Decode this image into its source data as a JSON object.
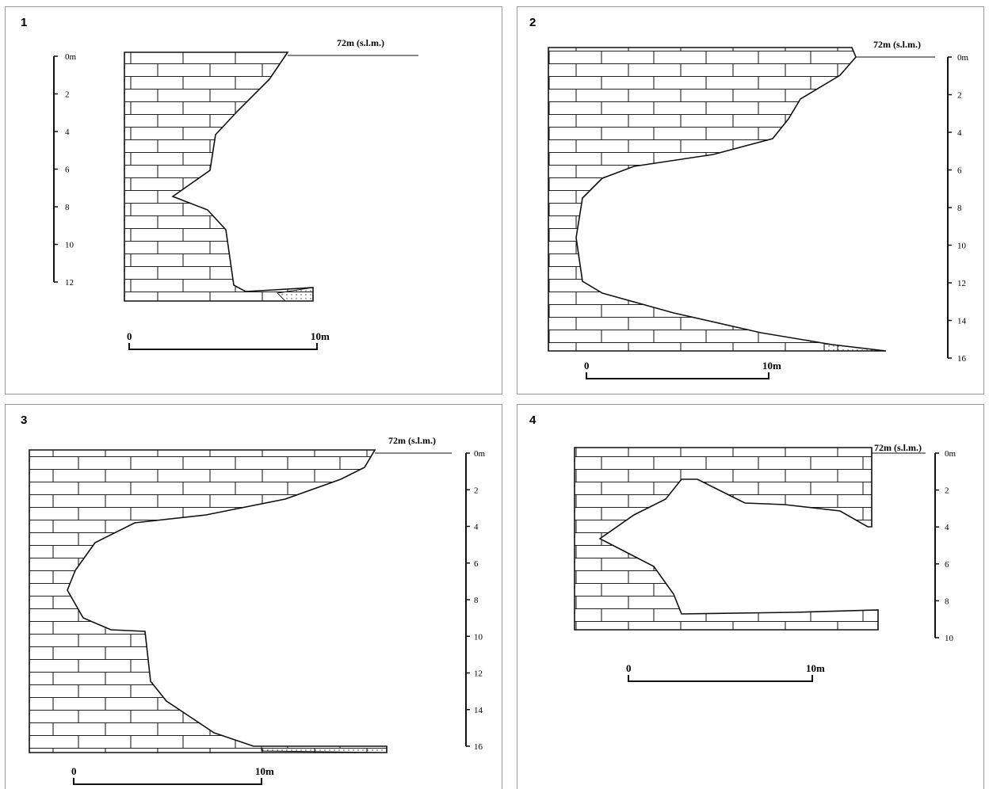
{
  "panels": [
    {
      "number": "1",
      "elevation": "72m (s.l.m.)",
      "depth_ticks": [
        "0m",
        "2",
        "4",
        "6",
        "8",
        "10",
        "12"
      ],
      "scale_labels": [
        "0",
        "10m"
      ]
    },
    {
      "number": "2",
      "elevation": "72m (s.l.m.)",
      "depth_ticks": [
        "0m",
        "2",
        "4",
        "6",
        "8",
        "10",
        "12",
        "14",
        "16"
      ],
      "scale_labels": [
        "0",
        "10m"
      ]
    },
    {
      "number": "3",
      "elevation": "72m (s.l.m.)",
      "depth_ticks": [
        "0m",
        "2",
        "4",
        "6",
        "8",
        "10",
        "12",
        "14",
        "16"
      ],
      "scale_labels": [
        "0",
        "10m"
      ]
    },
    {
      "number": "4",
      "elevation": "72m (s.l.m.)",
      "depth_ticks": [
        "0m",
        "2",
        "4",
        "6",
        "8",
        "10"
      ],
      "scale_labels": [
        "0",
        "10m"
      ]
    }
  ]
}
